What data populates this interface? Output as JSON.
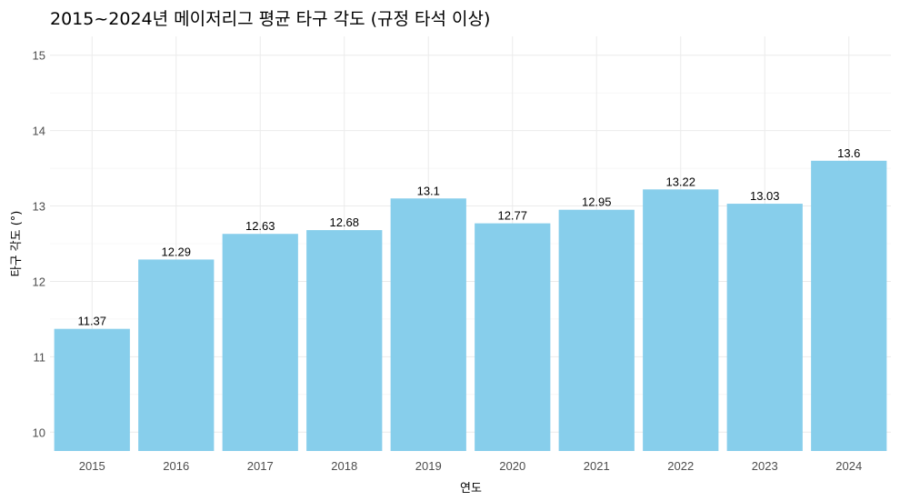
{
  "chart_data": {
    "type": "bar",
    "title": "2015~2024년 메이저리그 평균 타구 각도 (규정 타석 이상)",
    "xlabel": "연도",
    "ylabel": "타구 각도 (°)",
    "categories": [
      "2015",
      "2016",
      "2017",
      "2018",
      "2019",
      "2020",
      "2021",
      "2022",
      "2023",
      "2024"
    ],
    "values": [
      11.37,
      12.29,
      12.63,
      12.68,
      13.1,
      12.77,
      12.95,
      13.22,
      13.03,
      13.6
    ],
    "data_labels": [
      "11.37",
      "12.29",
      "12.63",
      "12.68",
      "13.1",
      "12.77",
      "12.95",
      "13.22",
      "13.03",
      "13.6"
    ],
    "ylim": [
      9.75,
      15.25
    ],
    "yticks": [
      10,
      11,
      12,
      13,
      14,
      15
    ],
    "grid": true,
    "bar_color": "#87CEEB"
  }
}
